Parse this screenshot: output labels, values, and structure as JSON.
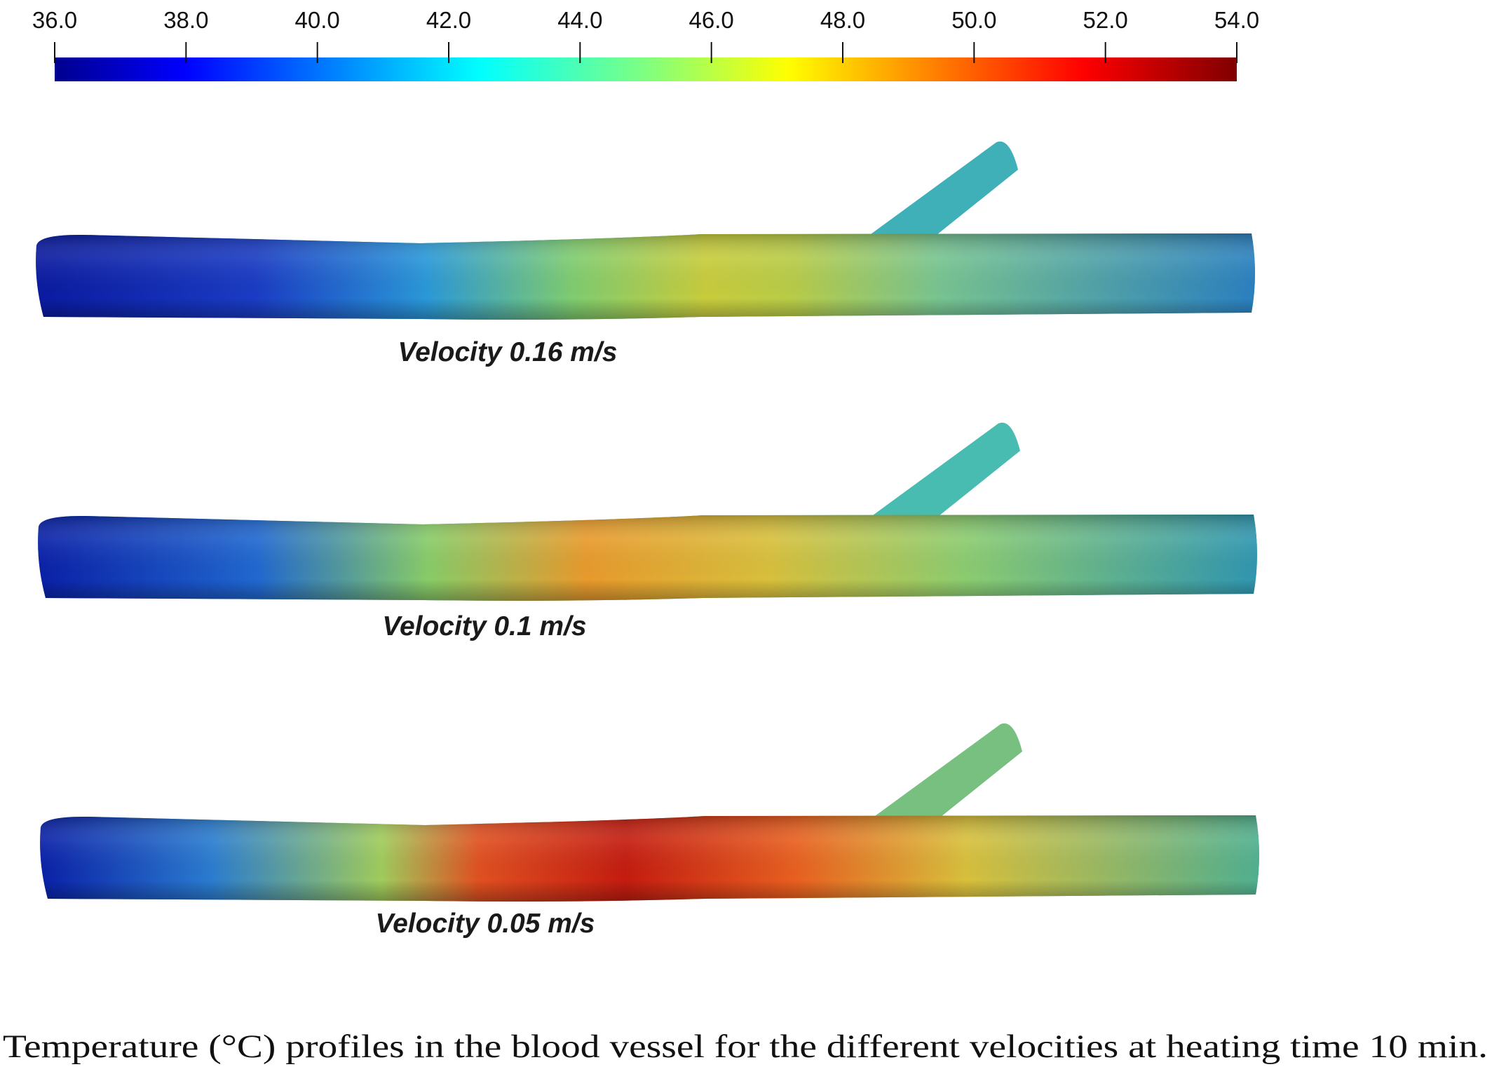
{
  "colorbar": {
    "range": [
      36,
      54
    ],
    "ticks": [
      {
        "value": 36,
        "label": "36.0"
      },
      {
        "value": 38,
        "label": "38.0"
      },
      {
        "value": 40,
        "label": "40.0"
      },
      {
        "value": 42,
        "label": "42.0"
      },
      {
        "value": 44,
        "label": "44.0"
      },
      {
        "value": 46,
        "label": "46.0"
      },
      {
        "value": 48,
        "label": "48.0"
      },
      {
        "value": 50,
        "label": "50.0"
      },
      {
        "value": 52,
        "label": "52.0"
      },
      {
        "value": 54,
        "label": "54.0"
      }
    ]
  },
  "panels": [
    {
      "label": "Velocity 0.16 m/s"
    },
    {
      "label": "Velocity 0.1 m/s"
    },
    {
      "label": "Velocity 0.05 m/s"
    }
  ],
  "caption": "Temperature (°C) profiles in the blood vessel for the different velocities at heating time 10 min."
}
